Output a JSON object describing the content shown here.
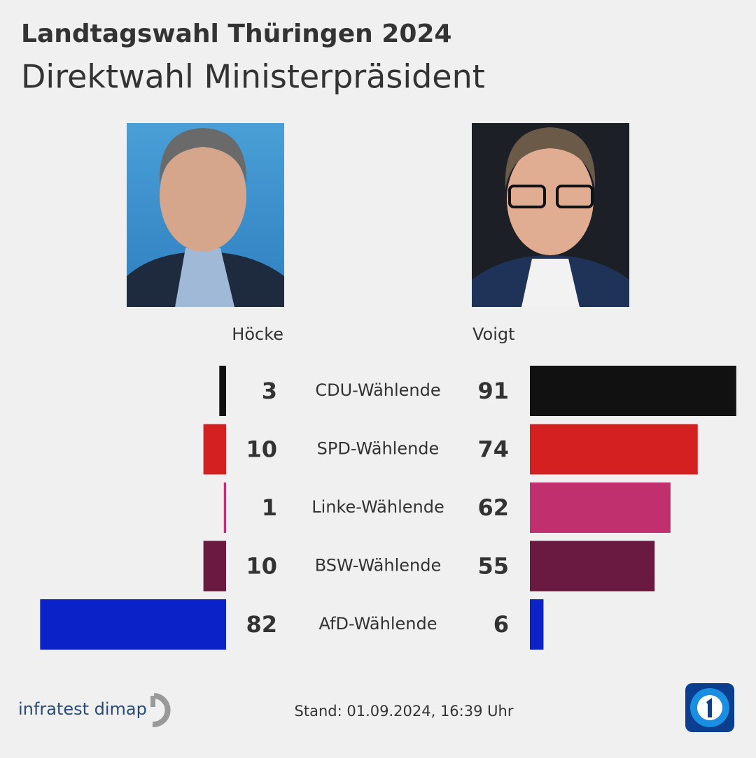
{
  "chart_data": {
    "type": "butterfly",
    "title": "Landtagswahl Thüringen 2024",
    "subtitle": "Direktwahl Ministerpräsident",
    "categories": [
      "CDU-Wählende",
      "SPD-Wählende",
      "Linke-Wählende",
      "BSW-Wählende",
      "AfD-Wählende"
    ],
    "colors": [
      "#111111",
      "#d42020",
      "#c0306f",
      "#6a1a40",
      "#0a22c8"
    ],
    "series": [
      {
        "name": "Höcke",
        "values": [
          3,
          10,
          1,
          10,
          82
        ]
      },
      {
        "name": "Voigt",
        "values": [
          91,
          74,
          62,
          55,
          6
        ]
      }
    ],
    "source": "infratest dimap",
    "footnote": "Stand:  01.09.2024, 16:39 Uhr"
  }
}
